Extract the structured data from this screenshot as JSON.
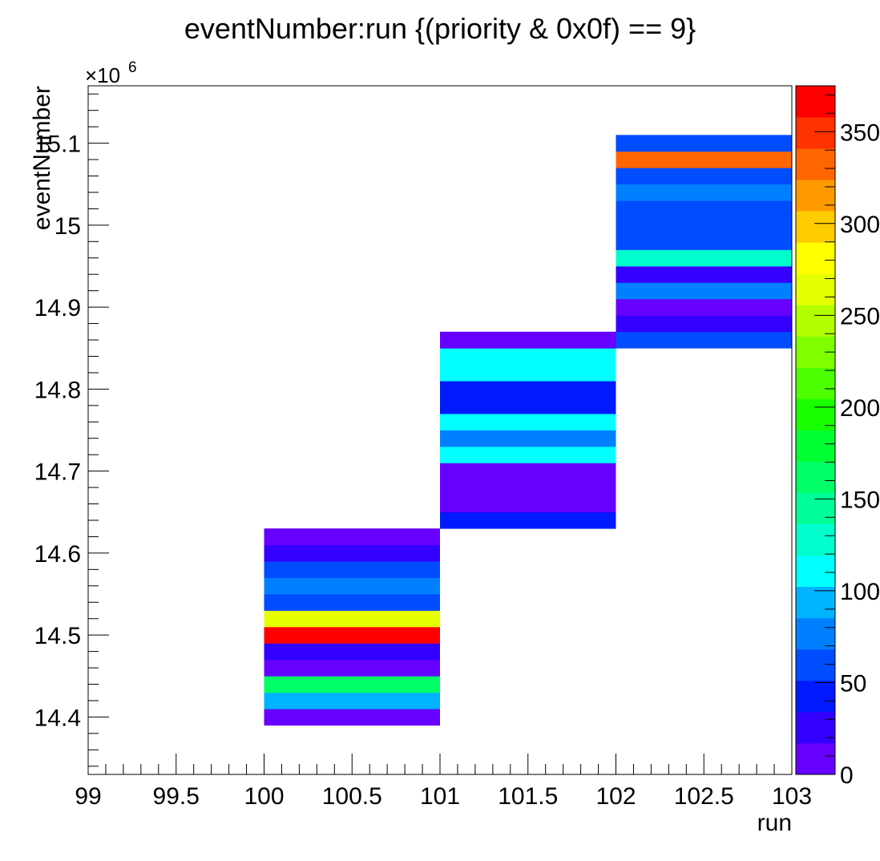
{
  "chart_data": {
    "type": "heatmap",
    "title": "eventNumber:run {(priority & 0x0f) == 9}",
    "xlabel": "run",
    "ylabel": "eventNumber",
    "y_multiplier": "×10",
    "y_multiplier_exp": "6",
    "xlim": [
      99,
      103
    ],
    "ylim": [
      14.33,
      15.17
    ],
    "y_unit_scale": 1000000,
    "x_ticks": [
      "99",
      "99.5",
      "100",
      "100.5",
      "101",
      "101.5",
      "102",
      "102.5",
      "103"
    ],
    "x_tick_values": [
      99,
      99.5,
      100,
      100.5,
      101,
      101.5,
      102,
      102.5,
      103
    ],
    "y_ticks": [
      "14.4",
      "14.5",
      "14.6",
      "14.7",
      "14.8",
      "14.9",
      "15",
      "15.1"
    ],
    "y_tick_values": [
      14.4,
      14.5,
      14.6,
      14.7,
      14.8,
      14.9,
      15.0,
      15.1
    ],
    "z_range": [
      0,
      375
    ],
    "z_ticks": [
      "0",
      "50",
      "100",
      "150",
      "200",
      "250",
      "300",
      "350"
    ],
    "z_tick_values": [
      0,
      50,
      100,
      150,
      200,
      250,
      300,
      350
    ],
    "palette": [
      "#6600ff",
      "#3300ff",
      "#0019ff",
      "#004dff",
      "#0080ff",
      "#00b3ff",
      "#00ffff",
      "#00ffcc",
      "#00ff99",
      "#00ff66",
      "#00ff33",
      "#19ff00",
      "#4dff00",
      "#80ff00",
      "#b3ff00",
      "#e6ff00",
      "#ffff00",
      "#ffcc00",
      "#ff9900",
      "#ff6600",
      "#ff3300",
      "#ff0000"
    ],
    "y_bin_width": 0.02,
    "columns": [
      {
        "x0": 100,
        "x1": 101,
        "y_start": 14.39,
        "counts": [
          10,
          100,
          160,
          15,
          30,
          365,
          265,
          60,
          80,
          60,
          30,
          15
        ]
      },
      {
        "x0": 101,
        "x1": 102,
        "y_start": 14.63,
        "counts": [
          50,
          10,
          10,
          10,
          110,
          85,
          110,
          50,
          50,
          110,
          110,
          10
        ]
      },
      {
        "x0": 102,
        "x1": 103,
        "y_start": 14.85,
        "counts": [
          55,
          30,
          10,
          85,
          30,
          125,
          55,
          55,
          55,
          85,
          55,
          340,
          60
        ]
      }
    ]
  }
}
